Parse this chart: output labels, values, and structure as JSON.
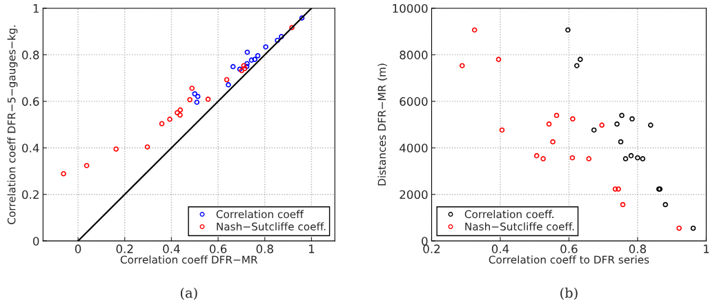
{
  "chart_data": [
    {
      "type": "scatter",
      "xlabel": "Correlation coeff DFR−MR",
      "ylabel": "Correlation coeff DFR−5−gauges−kg.",
      "xlim": [
        -0.15,
        1.1
      ],
      "ylim": [
        0,
        1
      ],
      "xticks": [
        0,
        0.2,
        0.4,
        0.6,
        0.8,
        1
      ],
      "yticks": [
        0,
        0.2,
        0.4,
        0.6,
        0.8,
        1
      ],
      "grid": true,
      "legend": "bottom right",
      "marker": "circle",
      "annotations": [
        "(a)"
      ],
      "series": [
        {
          "name": "Correlation coeff",
          "color": "#0000ff",
          "x": [
            0.5,
            0.513,
            0.509,
            0.644,
            0.664,
            0.693,
            0.724,
            0.723,
            0.725,
            0.743,
            0.757,
            0.77,
            0.804,
            0.854,
            0.871,
            0.959
          ],
          "values": [
            0.632,
            0.621,
            0.596,
            0.671,
            0.749,
            0.738,
            0.762,
            0.75,
            0.811,
            0.777,
            0.78,
            0.796,
            0.834,
            0.862,
            0.878,
            0.958
          ]
        },
        {
          "name": "Nash−Sutcliffe coeff.",
          "color": "#ff0000",
          "x": [
            -0.062,
            0.037,
            0.163,
            0.297,
            0.359,
            0.393,
            0.425,
            0.438,
            0.437,
            0.479,
            0.488,
            0.557,
            0.637,
            0.701,
            0.71,
            0.714,
            0.916
          ],
          "values": [
            0.289,
            0.324,
            0.395,
            0.404,
            0.504,
            0.523,
            0.551,
            0.563,
            0.541,
            0.607,
            0.656,
            0.609,
            0.693,
            0.732,
            0.753,
            0.741,
            0.917
          ]
        },
        {
          "type": "line",
          "color": "#000000",
          "x": [
            0,
            1
          ],
          "values": [
            0,
            1
          ],
          "marker": "none"
        }
      ]
    },
    {
      "type": "scatter",
      "xlabel": "Correlation coeff to DFR series",
      "ylabel": "Distances DFR−MR (m)",
      "xlim": [
        0.2,
        1
      ],
      "ylim": [
        0,
        10000
      ],
      "xticks": [
        0.2,
        0.4,
        0.6,
        0.8,
        1
      ],
      "yticks": [
        0,
        2000,
        4000,
        6000,
        8000,
        10000
      ],
      "grid": true,
      "legend": "bottom left",
      "marker": "circle",
      "annotations": [
        "(b)"
      ],
      "series": [
        {
          "name": "Correlation coeff.",
          "color": "#000000",
          "x": [
            0.597,
            0.623,
            0.633,
            0.673,
            0.74,
            0.754,
            0.784,
            0.838,
            0.751,
            0.765,
            0.781,
            0.8,
            0.815,
            0.862,
            0.865,
            0.881,
            0.962
          ],
          "values": [
            9066,
            7531,
            7800,
            4767,
            5024,
            5394,
            5245,
            4976,
            4260,
            3532,
            3663,
            3573,
            3532,
            2230,
            2230,
            1562,
            547
          ]
        },
        {
          "name": "Nash−Sutcliffe coeff.",
          "color": "#ff0000",
          "x": [
            0.289,
            0.325,
            0.395,
            0.405,
            0.506,
            0.525,
            0.542,
            0.553,
            0.564,
            0.611,
            0.61,
            0.696,
            0.658,
            0.735,
            0.744,
            0.757,
            0.921
          ],
          "values": [
            7531,
            9066,
            7800,
            4767,
            3663,
            3532,
            5024,
            4260,
            5394,
            5245,
            3573,
            4976,
            3532,
            2230,
            2230,
            1562,
            547
          ]
        }
      ]
    }
  ]
}
